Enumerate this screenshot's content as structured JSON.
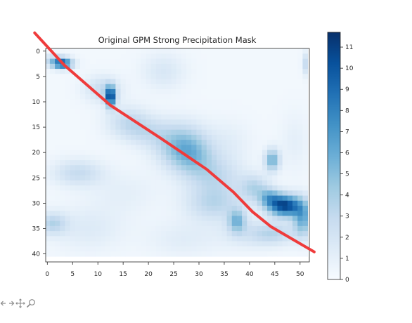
{
  "chart_data": {
    "type": "heatmap",
    "title": "Original GPM Strong Precipitation Mask",
    "x_range": [
      0,
      52
    ],
    "y_range": [
      0,
      41
    ],
    "x_ticks": [
      0,
      5,
      10,
      15,
      20,
      25,
      30,
      35,
      40,
      45,
      50
    ],
    "y_ticks": [
      0,
      5,
      10,
      15,
      20,
      25,
      30,
      35,
      40
    ],
    "colorbar": {
      "colormap": "Blues",
      "range": [
        0,
        11.7
      ],
      "ticks": [
        0,
        1,
        2,
        3,
        4,
        5,
        6,
        7,
        8,
        9,
        10,
        11
      ]
    },
    "background_value": 0.3,
    "blobs": [
      {
        "x": 3,
        "y": 2.5,
        "sx": 1.4,
        "sy": 0.7,
        "value": 8.5
      },
      {
        "x": 1.5,
        "y": 1.8,
        "sx": 1.8,
        "sy": 0.8,
        "value": 3
      },
      {
        "x": 12.5,
        "y": 9,
        "sx": 0.7,
        "sy": 1.4,
        "value": 10
      },
      {
        "x": 11,
        "y": 7.5,
        "sx": 2.5,
        "sy": 1.8,
        "value": 2.5
      },
      {
        "x": 16,
        "y": 14,
        "sx": 3,
        "sy": 2.2,
        "value": 2.5
      },
      {
        "x": 26.5,
        "y": 18.5,
        "sx": 3.5,
        "sy": 3,
        "value": 4.5
      },
      {
        "x": 23,
        "y": 4,
        "sx": 3,
        "sy": 2.5,
        "value": 1.5
      },
      {
        "x": 44.5,
        "y": 21.5,
        "sx": 1,
        "sy": 1.5,
        "value": 5.5
      },
      {
        "x": 41,
        "y": 27,
        "sx": 2,
        "sy": 1.8,
        "value": 3
      },
      {
        "x": 47,
        "y": 30.5,
        "sx": 2.2,
        "sy": 1.5,
        "value": 10.5
      },
      {
        "x": 44,
        "y": 29,
        "sx": 1.5,
        "sy": 1.3,
        "value": 4.5
      },
      {
        "x": 50.5,
        "y": 33,
        "sx": 1.3,
        "sy": 2.5,
        "value": 5.5
      },
      {
        "x": 37.5,
        "y": 33.5,
        "sx": 1.2,
        "sy": 1.6,
        "value": 4.5
      },
      {
        "x": 33,
        "y": 30,
        "sx": 4,
        "sy": 2.5,
        "value": 3
      },
      {
        "x": 6,
        "y": 24,
        "sx": 3.5,
        "sy": 1.8,
        "value": 2.5
      },
      {
        "x": 1,
        "y": 34,
        "sx": 2,
        "sy": 1.5,
        "value": 3
      },
      {
        "x": 51.5,
        "y": 2.5,
        "sx": 0.6,
        "sy": 1.5,
        "value": 3.5
      },
      {
        "x": 33,
        "y": 24.5,
        "sx": 4,
        "sy": 2.5,
        "value": 2.5
      },
      {
        "x": 29,
        "y": 21,
        "sx": 3,
        "sy": 2.5,
        "value": 2.5
      },
      {
        "x": 20,
        "y": 16,
        "sx": 3,
        "sy": 2,
        "value": 1.8
      },
      {
        "x": 8,
        "y": 35,
        "sx": 5,
        "sy": 3,
        "value": 1.2
      },
      {
        "x": 40,
        "y": 36,
        "sx": 4,
        "sy": 2,
        "value": 1.5
      },
      {
        "x": 45,
        "y": 36,
        "sx": 3,
        "sy": 1.5,
        "value": 2.5
      },
      {
        "x": 27,
        "y": 37,
        "sx": 5,
        "sy": 2.5,
        "value": 1
      },
      {
        "x": 36,
        "y": 18,
        "sx": 3,
        "sy": 3,
        "value": 0.9
      },
      {
        "x": 49,
        "y": 18,
        "sx": 2,
        "sy": 4,
        "value": 0.8
      },
      {
        "x": 15,
        "y": 28,
        "sx": 5,
        "sy": 3,
        "value": 0.8
      }
    ],
    "overlay_line": {
      "color": "#ef3b3b",
      "points": [
        [
          -2.5,
          -3.6
        ],
        [
          3.4,
          2.8
        ],
        [
          12.5,
          10.7
        ],
        [
          22.6,
          17.3
        ],
        [
          31.5,
          23.3
        ],
        [
          36.8,
          27.8
        ],
        [
          40.6,
          31.7
        ],
        [
          44.2,
          34.6
        ],
        [
          52.8,
          39.6
        ]
      ]
    },
    "colors": {
      "text": "#262626",
      "line": "#ef3b3b"
    }
  },
  "toolbar": {
    "icons": [
      "arrow-left-icon",
      "arrow-right-icon",
      "pan-icon",
      "zoom-icon"
    ]
  }
}
